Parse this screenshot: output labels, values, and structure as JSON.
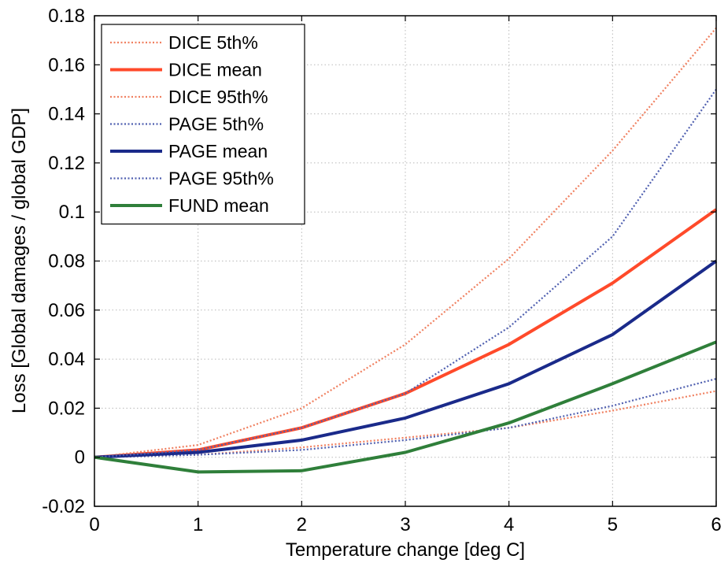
{
  "chart_data": {
    "type": "line",
    "title": "",
    "xlabel": "Temperature change [deg C]",
    "ylabel": "Loss [Global damages / global GDP]",
    "xlim": [
      0,
      6
    ],
    "ylim": [
      -0.02,
      0.18
    ],
    "x_ticks": [
      "0",
      "1",
      "2",
      "3",
      "4",
      "5",
      "6"
    ],
    "y_ticks": [
      "-0.02",
      "0",
      "0.02",
      "0.04",
      "0.06",
      "0.08",
      "0.1",
      "0.12",
      "0.14",
      "0.16",
      "0.18"
    ],
    "grid": true,
    "legend_position": "top-left",
    "x": [
      0,
      1,
      2,
      3,
      4,
      5,
      6
    ],
    "series": [
      {
        "name": "DICE 5th%",
        "values": [
          0,
          0.001,
          0.004,
          0.008,
          0.012,
          0.019,
          0.027
        ],
        "color": "#f08060",
        "style": "dotted"
      },
      {
        "name": "DICE mean",
        "values": [
          0,
          0.003,
          0.012,
          0.026,
          0.046,
          0.071,
          0.101
        ],
        "color": "#ff4a2a",
        "style": "solid"
      },
      {
        "name": "DICE 95th%",
        "values": [
          0,
          0.005,
          0.02,
          0.046,
          0.081,
          0.125,
          0.175
        ],
        "color": "#f08060",
        "style": "dotted"
      },
      {
        "name": "PAGE 5th%",
        "values": [
          0,
          0.001,
          0.003,
          0.007,
          0.012,
          0.021,
          0.032
        ],
        "color": "#5060b0",
        "style": "dotted"
      },
      {
        "name": "PAGE mean",
        "values": [
          0,
          0.002,
          0.007,
          0.016,
          0.03,
          0.05,
          0.08
        ],
        "color": "#1a2a8a",
        "style": "solid"
      },
      {
        "name": "PAGE 95th%",
        "values": [
          0,
          0.003,
          0.012,
          0.026,
          0.053,
          0.09,
          0.15
        ],
        "color": "#5060b0",
        "style": "dotted"
      },
      {
        "name": "FUND mean",
        "values": [
          0,
          -0.006,
          -0.0055,
          0.002,
          0.014,
          0.03,
          0.047
        ],
        "color": "#2f7f3a",
        "style": "solid"
      }
    ]
  }
}
